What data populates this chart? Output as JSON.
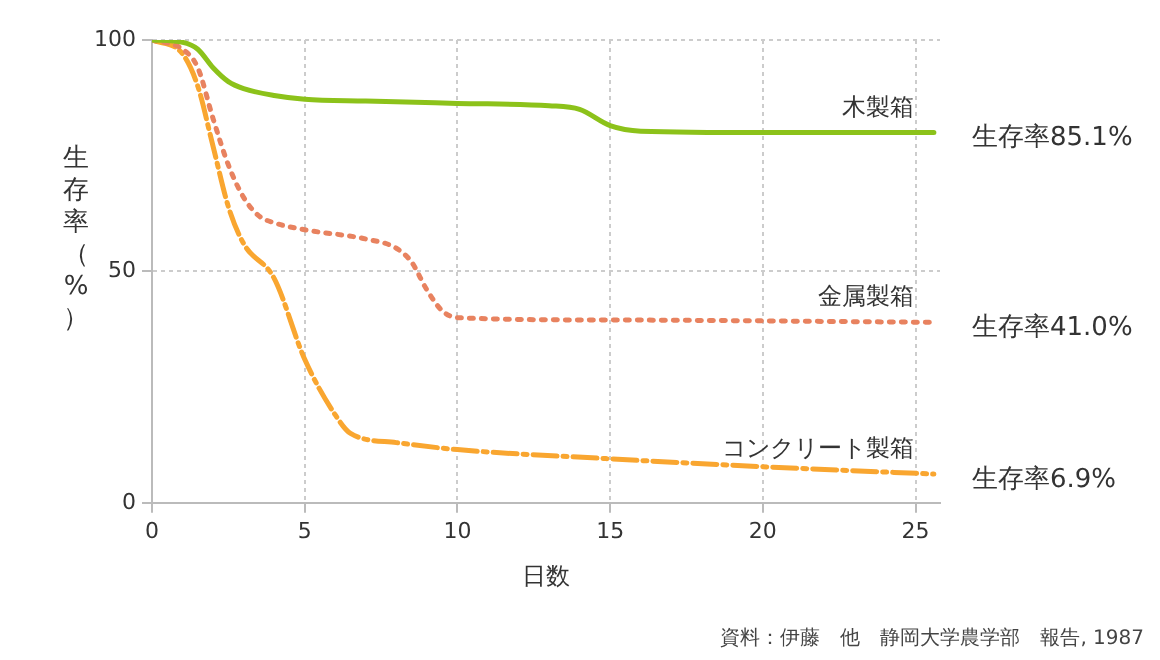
{
  "chart_data": {
    "type": "line",
    "xlabel": "日数",
    "ylabel": "生存率（%）",
    "xlim": [
      0,
      25.8
    ],
    "ylim": [
      0,
      100
    ],
    "xticks": [
      0,
      5,
      10,
      15,
      20,
      25
    ],
    "yticks": [
      0,
      50,
      100
    ],
    "grid": true,
    "legend": false,
    "marker": "none",
    "series": [
      {
        "name": "木製箱",
        "color": "#8cc21a",
        "line_style": "solid",
        "x": [
          0,
          1,
          1.5,
          2,
          2.5,
          3,
          4,
          5,
          7,
          10,
          13,
          14,
          15,
          16,
          20,
          25.6
        ],
        "values": [
          100,
          99.5,
          98,
          94,
          91,
          89.5,
          88,
          87.2,
          86.8,
          86.3,
          85.8,
          85,
          81.5,
          80.3,
          80,
          80
        ]
      },
      {
        "name": "金属製箱",
        "color": "#e8825f",
        "line_style": "dotted",
        "x": [
          0,
          1,
          1.5,
          2,
          2.5,
          3,
          3.5,
          4,
          5,
          7,
          8,
          8.5,
          9,
          9.5,
          10,
          15,
          25.6
        ],
        "values": [
          100,
          98,
          94,
          83,
          73,
          66,
          62,
          60.5,
          59,
          57,
          55,
          52,
          46,
          41.5,
          40,
          39.5,
          39
        ]
      },
      {
        "name": "コンクリート製箱",
        "color": "#f9a630",
        "line_style": "dashed",
        "x": [
          0,
          1,
          1.5,
          2,
          2.5,
          3,
          4,
          5,
          6,
          6.5,
          8,
          10,
          15,
          20,
          25.6
        ],
        "values": [
          100,
          97,
          90,
          77,
          64,
          56,
          48.5,
          31,
          19,
          15,
          13,
          11.5,
          9.5,
          7.8,
          6.2
        ]
      }
    ],
    "annotations": [
      "生存率85.1%",
      "生存率41.0%",
      "生存率6.9%",
      "資料：伊藤　他　静岡大学農学部　報告, 1987"
    ]
  }
}
